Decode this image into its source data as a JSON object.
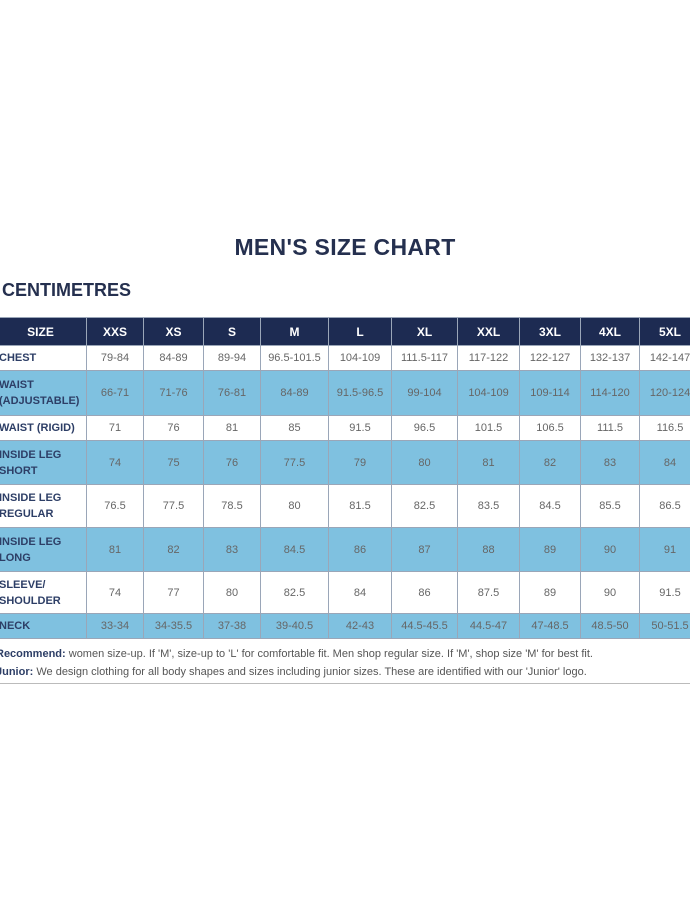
{
  "title": "MEN'S SIZE CHART",
  "unit": "CENTIMETRES",
  "header": [
    "SIZE",
    "XXS",
    "XS",
    "S",
    "M",
    "L",
    "XL",
    "XXL",
    "3XL",
    "4XL",
    "5XL"
  ],
  "rows": [
    {
      "label": "CHEST",
      "values": [
        "79-84",
        "84-89",
        "89-94",
        "96.5-101.5",
        "104-109",
        "111.5-117",
        "117-122",
        "122-127",
        "132-137",
        "142-147"
      ]
    },
    {
      "label": "WAIST (ADJUSTABLE)",
      "values": [
        "66-71",
        "71-76",
        "76-81",
        "84-89",
        "91.5-96.5",
        "99-104",
        "104-109",
        "109-114",
        "114-120",
        "120-124"
      ]
    },
    {
      "label": "WAIST (RIGID)",
      "values": [
        "71",
        "76",
        "81",
        "85",
        "91.5",
        "96.5",
        "101.5",
        "106.5",
        "111.5",
        "116.5"
      ]
    },
    {
      "label": "INSIDE LEG SHORT",
      "values": [
        "74",
        "75",
        "76",
        "77.5",
        "79",
        "80",
        "81",
        "82",
        "83",
        "84"
      ]
    },
    {
      "label": "INSIDE LEG REGULAR",
      "values": [
        "76.5",
        "77.5",
        "78.5",
        "80",
        "81.5",
        "82.5",
        "83.5",
        "84.5",
        "85.5",
        "86.5"
      ]
    },
    {
      "label": "INSIDE LEG LONG",
      "values": [
        "81",
        "82",
        "83",
        "84.5",
        "86",
        "87",
        "88",
        "89",
        "90",
        "91"
      ]
    },
    {
      "label": "SLEEVE/ SHOULDER",
      "values": [
        "74",
        "77",
        "80",
        "82.5",
        "84",
        "86",
        "87.5",
        "89",
        "90",
        "91.5"
      ]
    },
    {
      "label": "NECK",
      "values": [
        "33-34",
        "34-35.5",
        "37-38",
        "39-40.5",
        "42-43",
        "44.5-45.5",
        "44.5-47",
        "47-48.5",
        "48.5-50",
        "50-51.5"
      ]
    }
  ],
  "notes": [
    {
      "label": "Recommend:",
      "text": " women size-up. If 'M', size-up to 'L' for comfortable fit. Men shop regular size. If 'M', shop size 'M' for best fit."
    },
    {
      "label": "Junior:",
      "text": " We design clothing for all body shapes and sizes including junior sizes. These are identified with our 'Junior' logo."
    }
  ]
}
